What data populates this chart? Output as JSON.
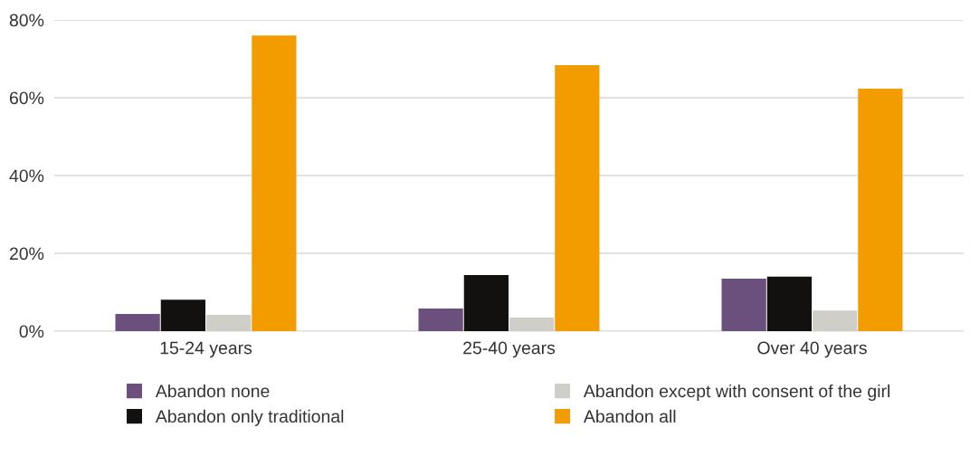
{
  "chart_data": {
    "type": "bar",
    "categories": [
      "15-24 years",
      "25-40 years",
      "Over 40 years"
    ],
    "series": [
      {
        "name": "Abandon none",
        "color": "#6b4f7c",
        "values": [
          4.4,
          5.8,
          13.5
        ]
      },
      {
        "name": "Abandon only traditional",
        "color": "#12110f",
        "values": [
          8.1,
          14.4,
          14.0
        ]
      },
      {
        "name": "Abandon except with consent of the girl",
        "color": "#d0cec9",
        "values": [
          4.2,
          3.5,
          5.3
        ]
      },
      {
        "name": "Abandon all",
        "color": "#f39c00",
        "values": [
          76.0,
          68.4,
          62.3
        ]
      }
    ],
    "ylim": [
      0,
      80
    ],
    "yticks": [
      {
        "value": 0,
        "label": "0%"
      },
      {
        "value": 20,
        "label": "20%"
      },
      {
        "value": 40,
        "label": "40%"
      },
      {
        "value": 60,
        "label": "60%"
      },
      {
        "value": 80,
        "label": "80%"
      }
    ],
    "grid": "y",
    "legend": "bottom"
  }
}
